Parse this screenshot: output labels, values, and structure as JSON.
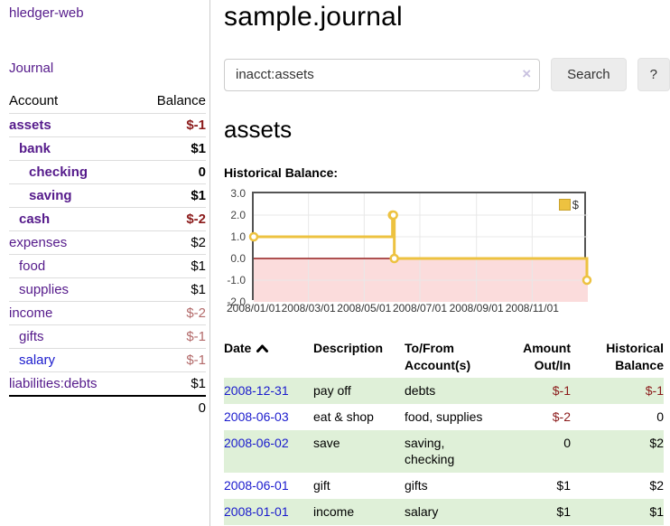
{
  "app": {
    "title": "hledger-web"
  },
  "sidebar": {
    "journal_link": "Journal",
    "accounts": {
      "header_account": "Account",
      "header_balance": "Balance",
      "rows": [
        {
          "name": "assets",
          "depth": 0,
          "bold": true,
          "name_color": "purple",
          "balance": "$-1",
          "balance_color": "dark",
          "balance_bold": true
        },
        {
          "name": "bank",
          "depth": 1,
          "bold": true,
          "name_color": "purple",
          "balance": "$1",
          "balance_color": "black",
          "balance_bold": true
        },
        {
          "name": "checking",
          "depth": 2,
          "bold": true,
          "name_color": "purple",
          "balance": "0",
          "balance_color": "black",
          "balance_bold": true
        },
        {
          "name": "saving",
          "depth": 2,
          "bold": true,
          "name_color": "purple",
          "balance": "$1",
          "balance_color": "black",
          "balance_bold": true
        },
        {
          "name": "cash",
          "depth": 1,
          "bold": true,
          "name_color": "purple",
          "balance": "$-2",
          "balance_color": "dark",
          "balance_bold": true
        },
        {
          "name": "expenses",
          "depth": 0,
          "bold": false,
          "name_color": "purple",
          "balance": "$2",
          "balance_color": "black",
          "balance_bold": false
        },
        {
          "name": "food",
          "depth": 1,
          "bold": false,
          "name_color": "purple",
          "balance": "$1",
          "balance_color": "black",
          "balance_bold": false
        },
        {
          "name": "supplies",
          "depth": 1,
          "bold": false,
          "name_color": "purple",
          "balance": "$1",
          "balance_color": "black",
          "balance_bold": false
        },
        {
          "name": "income",
          "depth": 0,
          "bold": false,
          "name_color": "purple",
          "balance": "$-2",
          "balance_color": "soft",
          "balance_bold": false
        },
        {
          "name": "gifts",
          "depth": 1,
          "bold": false,
          "name_color": "purple",
          "balance": "$-1",
          "balance_color": "soft",
          "balance_bold": false
        },
        {
          "name": "salary",
          "depth": 1,
          "bold": false,
          "name_color": "blue",
          "balance": "$-1",
          "balance_color": "soft",
          "balance_bold": false
        },
        {
          "name": "liabilities:debts",
          "depth": 0,
          "bold": false,
          "name_color": "purple",
          "balance": "$1",
          "balance_color": "black",
          "balance_bold": false
        }
      ],
      "total": "0"
    }
  },
  "main": {
    "title": "sample.journal",
    "search": {
      "value": "inacct:assets",
      "clear_icon": "×",
      "button_label": "Search",
      "help_label": "?"
    },
    "account_heading": "assets"
  },
  "chart_data": {
    "type": "line",
    "title": "Historical Balance:",
    "series_label": "$",
    "series": [
      {
        "name": "$",
        "color": "#edc240",
        "points": [
          [
            "2008-01-01",
            1
          ],
          [
            "2008-06-01",
            2
          ],
          [
            "2008-06-02",
            2
          ],
          [
            "2008-06-03",
            0
          ],
          [
            "2008-12-31",
            -1
          ]
        ]
      }
    ],
    "step": true,
    "x_range": [
      "2008-01-01",
      "2009-01-01"
    ],
    "ylim": [
      -2,
      3
    ],
    "yticks": [
      3.0,
      2.0,
      1.0,
      0.0,
      -1.0,
      -2.0
    ],
    "xticks": [
      "2008/01/01",
      "2008/03/01",
      "2008/05/01",
      "2008/07/01",
      "2008/09/01",
      "2008/11/01"
    ],
    "grid": true,
    "legend_position": "top-right",
    "negative_region_color": "#fbdcdc",
    "zero_line_color": "#941c1c",
    "grid_color": "#e8e8e8",
    "border_color": "#545454"
  },
  "register_table": {
    "headers": {
      "date": "Date",
      "description": "Description",
      "accounts": "To/From Account(s)",
      "amount": "Amount Out/In",
      "balance": "Historical Balance"
    },
    "rows": [
      {
        "date": "2008-12-31",
        "description": "pay off",
        "accounts": "debts",
        "amount": "$-1",
        "amount_neg": true,
        "balance": "$-1",
        "balance_neg": true,
        "shade": true
      },
      {
        "date": "2008-06-03",
        "description": "eat & shop",
        "accounts": "food, supplies",
        "amount": "$-2",
        "amount_neg": true,
        "balance": "0",
        "balance_neg": false,
        "shade": false
      },
      {
        "date": "2008-06-02",
        "description": "save",
        "accounts": "saving, checking",
        "amount": "0",
        "amount_neg": false,
        "balance": "$2",
        "balance_neg": false,
        "shade": true
      },
      {
        "date": "2008-06-01",
        "description": "gift",
        "accounts": "gifts",
        "amount": "$1",
        "amount_neg": false,
        "balance": "$2",
        "balance_neg": false,
        "shade": false
      },
      {
        "date": "2008-01-01",
        "description": "income",
        "accounts": "salary",
        "amount": "$1",
        "amount_neg": false,
        "balance": "$1",
        "balance_neg": false,
        "shade": true
      }
    ]
  },
  "colors": {
    "link_purple": "#551a8b",
    "link_blue": "#1a1acd",
    "negative_strong": "#8b1a1a",
    "negative_soft": "#b36a6a",
    "row_shade_green": "#dff0d8",
    "series_yellow": "#edc240"
  }
}
